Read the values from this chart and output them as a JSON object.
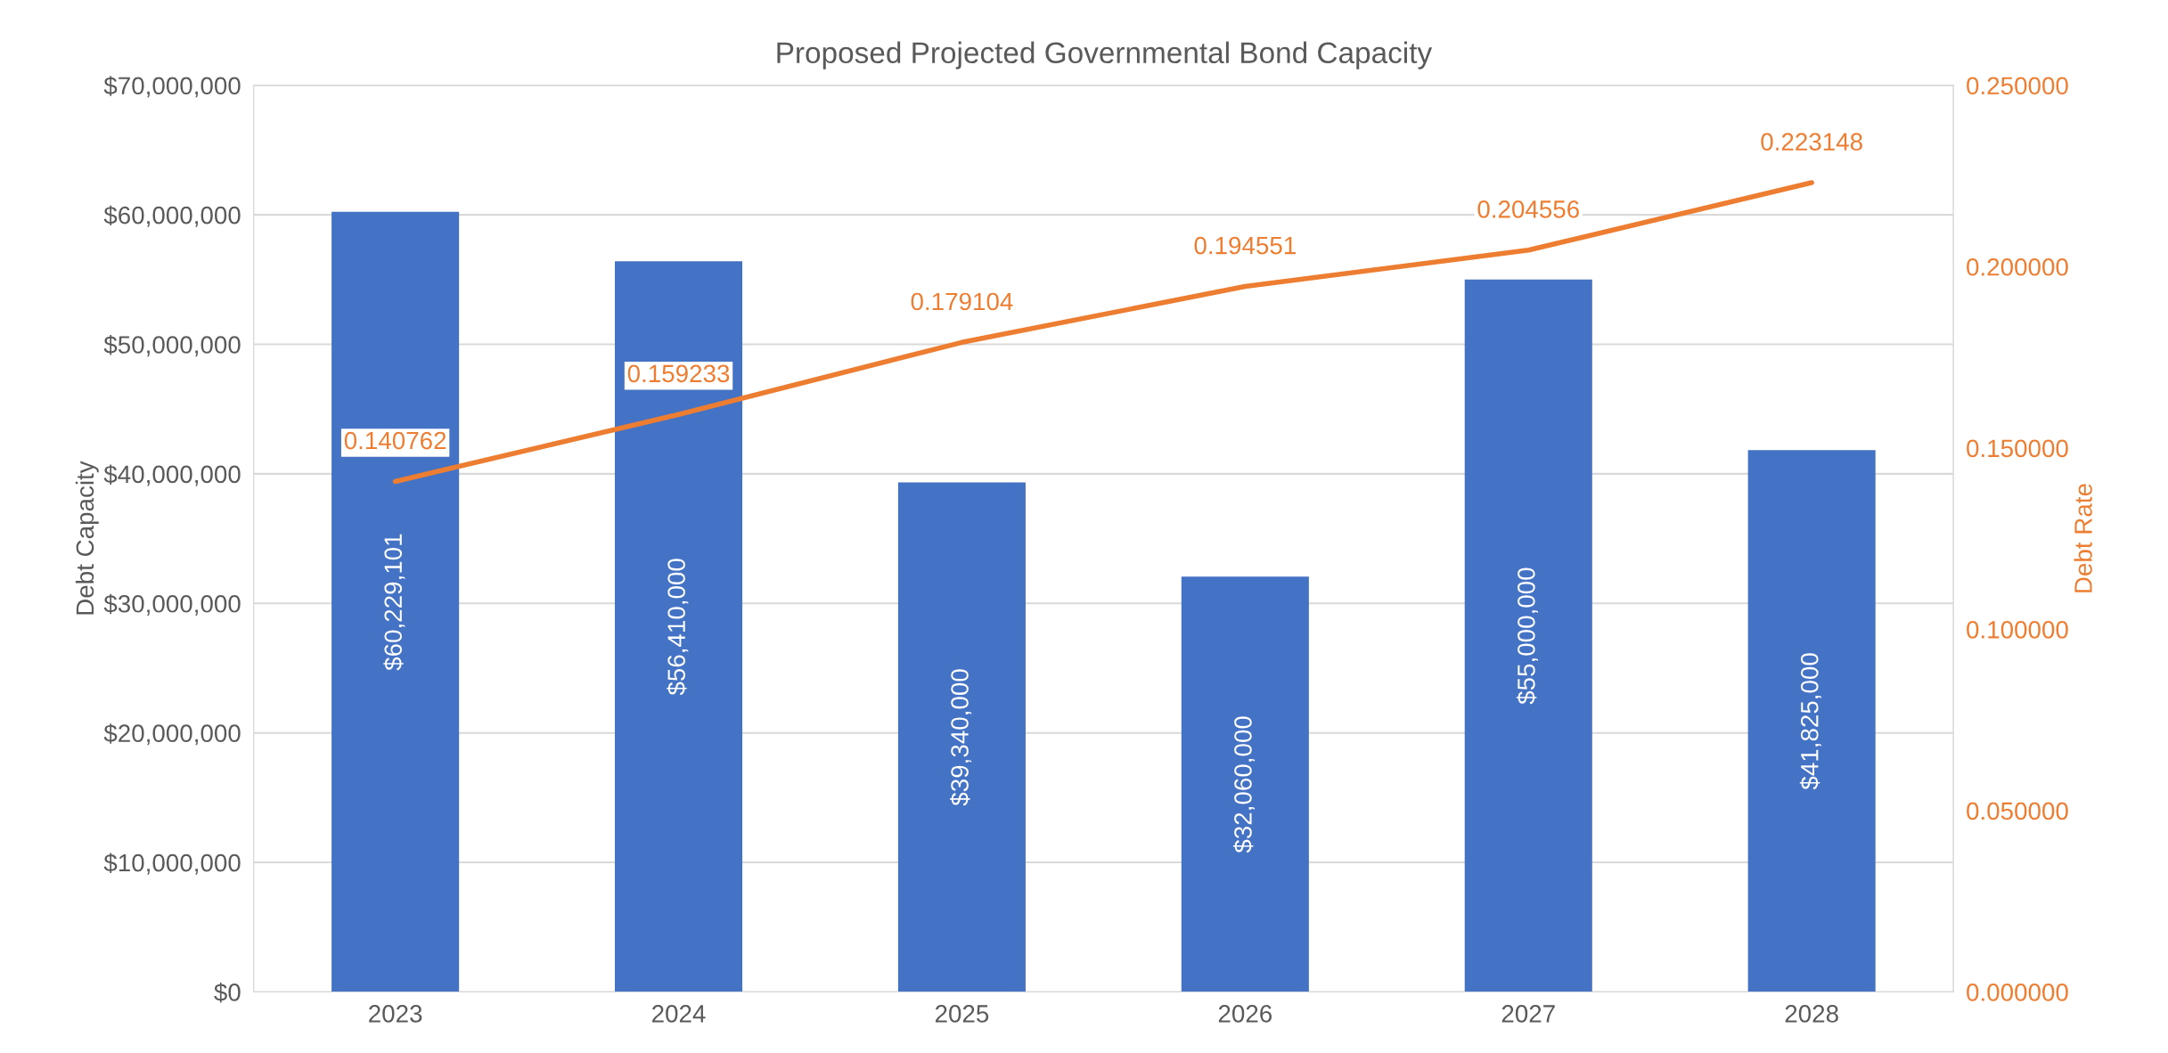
{
  "chart_data": {
    "type": "bar",
    "title": "Proposed Projected Governmental Bond Capacity",
    "ylabel": "Debt Capacity",
    "y2label": "Debt Rate",
    "categories": [
      "2023",
      "2024",
      "2025",
      "2026",
      "2027",
      "2028"
    ],
    "series": [
      {
        "name": null,
        "color": "#4472c4",
        "values": [
          60229101,
          56410000,
          39340000,
          32060000,
          55000000,
          41825000
        ],
        "value_labels": [
          "$60,229,101",
          "$56,410,000",
          "$39,340,000",
          "$32,060,000",
          "$55,000,000",
          "$41,825,000"
        ]
      },
      {
        "name": null,
        "type": "line",
        "axis": "y2",
        "color": "#ed7d31",
        "values": [
          0.140762,
          0.159233,
          0.179104,
          0.194551,
          0.204556,
          0.223148
        ],
        "value_labels": [
          "0.140762",
          "0.159233",
          "0.179104",
          "0.194551",
          "0.204556",
          "0.223148"
        ]
      }
    ],
    "ylim": [
      0,
      70000000
    ],
    "yticks": [
      {
        "value": 0,
        "label": "$0"
      },
      {
        "value": 10000000,
        "label": "$10,000,000"
      },
      {
        "value": 20000000,
        "label": "$20,000,000"
      },
      {
        "value": 30000000,
        "label": "$30,000,000"
      },
      {
        "value": 40000000,
        "label": "$40,000,000"
      },
      {
        "value": 50000000,
        "label": "$50,000,000"
      },
      {
        "value": 60000000,
        "label": "$60,000,000"
      },
      {
        "value": 70000000,
        "label": "$70,000,000"
      }
    ],
    "y2lim": [
      0,
      0.25
    ],
    "y2ticks": [
      {
        "value": 0,
        "label": "0.000000"
      },
      {
        "value": 0.05,
        "label": "0.050000"
      },
      {
        "value": 0.1,
        "label": "0.100000"
      },
      {
        "value": 0.15,
        "label": "0.150000"
      },
      {
        "value": 0.2,
        "label": "0.200000"
      },
      {
        "value": 0.25,
        "label": "0.250000"
      }
    ],
    "grid": "y",
    "legend": false
  }
}
